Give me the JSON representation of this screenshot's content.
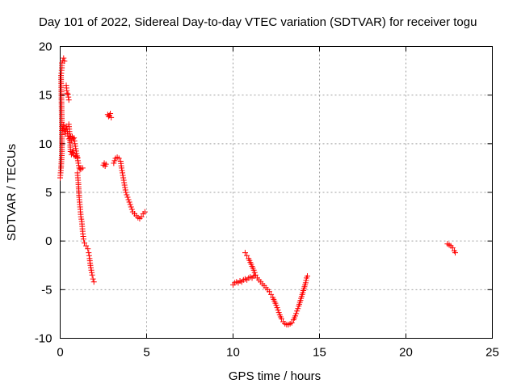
{
  "chart_data": {
    "type": "scatter",
    "title": "Day 101 of 2022, Sidereal Day-to-day VTEC variation (SDTVAR) for receiver togu",
    "xlabel": "GPS time / hours",
    "ylabel": "SDTVAR / TECUs",
    "xlim": [
      0,
      25
    ],
    "ylim": [
      -10,
      20
    ],
    "xticks": [
      0,
      5,
      10,
      15,
      20,
      25
    ],
    "yticks": [
      -10,
      -5,
      0,
      5,
      10,
      15,
      20
    ],
    "grid": true,
    "marker": "+",
    "color": "#ff0000",
    "series": [
      {
        "name": "SDTVAR",
        "segments": [
          [
            [
              0.0,
              6.5
            ],
            [
              0.05,
              7.5
            ],
            [
              0.1,
              9
            ],
            [
              0.1,
              12
            ],
            [
              0.05,
              17
            ],
            [
              0.1,
              17.8
            ],
            [
              0.1,
              18.3
            ],
            [
              0.2,
              18.8
            ],
            [
              0.25,
              18.5
            ]
          ],
          [
            [
              0.15,
              11.5
            ],
            [
              0.2,
              11.9
            ],
            [
              0.25,
              11.4
            ],
            [
              0.3,
              11
            ],
            [
              0.35,
              11.8
            ],
            [
              0.4,
              11.5
            ],
            [
              0.45,
              10.8
            ],
            [
              0.5,
              10.5
            ],
            [
              0.55,
              10.8
            ],
            [
              0.6,
              10.7
            ],
            [
              0.65,
              10.3
            ],
            [
              0.7,
              10.7
            ],
            [
              0.75,
              10.5
            ],
            [
              0.8,
              10.6
            ],
            [
              0.85,
              10.0
            ],
            [
              0.9,
              9.5
            ],
            [
              0.95,
              9.0
            ],
            [
              1.0,
              8.5
            ],
            [
              1.05,
              8.0
            ],
            [
              1.1,
              7.5
            ],
            [
              1.15,
              7.4
            ],
            [
              1.2,
              7.4
            ],
            [
              1.3,
              7.5
            ]
          ],
          [
            [
              0.35,
              16.0
            ],
            [
              0.4,
              15.2
            ],
            [
              0.45,
              15.1
            ],
            [
              0.5,
              14.5
            ]
          ],
          [
            [
              0.5,
              12.0
            ],
            [
              0.55,
              11.0
            ],
            [
              0.6,
              9.2
            ],
            [
              0.65,
              8.9
            ],
            [
              0.7,
              9.1
            ],
            [
              0.75,
              9.3
            ],
            [
              0.8,
              8.8
            ],
            [
              0.9,
              8.7
            ],
            [
              1.0,
              8.6
            ]
          ],
          [
            [
              1.0,
              7.0
            ],
            [
              1.05,
              6.0
            ],
            [
              1.1,
              4.5
            ],
            [
              1.15,
              3.5
            ],
            [
              1.2,
              2.5
            ],
            [
              1.25,
              2.0
            ],
            [
              1.3,
              1.0
            ],
            [
              1.35,
              0.2
            ],
            [
              1.4,
              -0.2
            ],
            [
              1.5,
              -0.5
            ],
            [
              1.6,
              -0.8
            ],
            [
              1.65,
              -1.2
            ],
            [
              1.7,
              -1.8
            ],
            [
              1.75,
              -2.5
            ],
            [
              1.8,
              -3.0
            ],
            [
              1.85,
              -3.5
            ],
            [
              1.9,
              -3.9
            ],
            [
              1.95,
              -4.2
            ]
          ],
          [
            [
              2.5,
              7.8
            ],
            [
              2.55,
              8.0
            ],
            [
              2.6,
              7.7
            ],
            [
              2.65,
              7.9
            ]
          ],
          [
            [
              2.75,
              13.0
            ],
            [
              2.8,
              12.8
            ],
            [
              2.85,
              12.9
            ],
            [
              2.9,
              13.1
            ],
            [
              2.95,
              12.7
            ]
          ],
          [
            [
              3.1,
              8.0
            ],
            [
              3.2,
              8.5
            ],
            [
              3.3,
              8.6
            ],
            [
              3.4,
              8.5
            ],
            [
              3.5,
              8.2
            ],
            [
              3.55,
              7.5
            ],
            [
              3.6,
              7.0
            ],
            [
              3.7,
              6.0
            ],
            [
              3.8,
              5.0
            ],
            [
              3.9,
              4.5
            ],
            [
              4.0,
              4.0
            ],
            [
              4.1,
              3.5
            ],
            [
              4.2,
              3.0
            ],
            [
              4.3,
              2.8
            ],
            [
              4.4,
              2.6
            ],
            [
              4.5,
              2.4
            ],
            [
              4.6,
              2.3
            ],
            [
              4.7,
              2.5
            ],
            [
              4.8,
              2.8
            ],
            [
              4.9,
              3.0
            ]
          ],
          [
            [
              10.0,
              -4.5
            ],
            [
              10.1,
              -4.3
            ],
            [
              10.2,
              -4.2
            ],
            [
              10.3,
              -4.3
            ],
            [
              10.4,
              -4.1
            ],
            [
              10.5,
              -4.2
            ],
            [
              10.6,
              -4.0
            ],
            [
              10.7,
              -3.9
            ],
            [
              10.8,
              -4.0
            ],
            [
              10.9,
              -3.8
            ],
            [
              11.0,
              -3.7
            ],
            [
              11.1,
              -3.8
            ],
            [
              11.2,
              -3.6
            ]
          ],
          [
            [
              10.7,
              -1.2
            ],
            [
              10.8,
              -1.5
            ],
            [
              10.9,
              -1.8
            ],
            [
              11.0,
              -2.2
            ],
            [
              11.1,
              -2.6
            ],
            [
              11.2,
              -3.0
            ],
            [
              11.3,
              -3.5
            ],
            [
              11.4,
              -3.8
            ],
            [
              11.5,
              -4.0
            ],
            [
              11.6,
              -4.2
            ],
            [
              11.7,
              -4.4
            ],
            [
              11.8,
              -4.6
            ],
            [
              11.9,
              -4.8
            ],
            [
              12.0,
              -5.0
            ],
            [
              12.1,
              -5.2
            ],
            [
              12.2,
              -5.5
            ],
            [
              12.3,
              -5.8
            ],
            [
              12.4,
              -6.2
            ],
            [
              12.5,
              -6.6
            ],
            [
              12.6,
              -7.1
            ],
            [
              12.7,
              -7.6
            ],
            [
              12.8,
              -8.0
            ],
            [
              12.9,
              -8.3
            ],
            [
              13.0,
              -8.5
            ],
            [
              13.1,
              -8.6
            ],
            [
              13.2,
              -8.6
            ],
            [
              13.3,
              -8.5
            ],
            [
              13.4,
              -8.4
            ],
            [
              13.5,
              -8.1
            ],
            [
              13.6,
              -7.7
            ],
            [
              13.7,
              -7.2
            ],
            [
              13.8,
              -6.7
            ],
            [
              13.9,
              -6.1
            ],
            [
              14.0,
              -5.5
            ],
            [
              14.1,
              -4.9
            ],
            [
              14.2,
              -4.3
            ],
            [
              14.25,
              -3.8
            ],
            [
              14.3,
              -3.6
            ]
          ],
          [
            [
              22.4,
              -0.3
            ],
            [
              22.5,
              -0.4
            ],
            [
              22.6,
              -0.5
            ],
            [
              22.7,
              -0.7
            ],
            [
              22.8,
              -1.0
            ],
            [
              22.85,
              -1.2
            ]
          ]
        ]
      }
    ]
  }
}
